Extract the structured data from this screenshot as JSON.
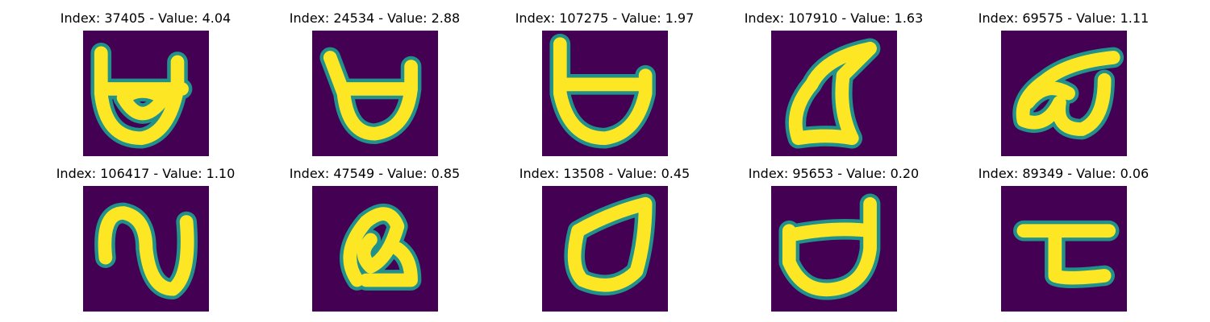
{
  "colors": {
    "background": "#440154",
    "stroke": "#fde725",
    "edge": "#21918c"
  },
  "chart_data": {
    "type": "image-grid",
    "panels": [
      {
        "title": "Index: 37405 - Value: 4.04",
        "index": 37405,
        "value": 4.04,
        "glyph": "open-bowl"
      },
      {
        "title": "Index: 24534 - Value: 2.88",
        "index": 24534,
        "value": 2.88,
        "glyph": "open-bowl"
      },
      {
        "title": "Index: 107275 - Value: 1.97",
        "index": 107275,
        "value": 1.97,
        "glyph": "open-bowl"
      },
      {
        "title": "Index: 107910 - Value: 1.63",
        "index": 107910,
        "value": 1.63,
        "glyph": "curl"
      },
      {
        "title": "Index: 69575 - Value: 1.11",
        "index": 69575,
        "value": 1.11,
        "glyph": "loop"
      },
      {
        "title": "Index: 106417 - Value: 1.10",
        "index": 106417,
        "value": 1.1,
        "glyph": "wave"
      },
      {
        "title": "Index: 47549 - Value: 0.85",
        "index": 47549,
        "value": 0.85,
        "glyph": "knot"
      },
      {
        "title": "Index: 13508 - Value: 0.45",
        "index": 13508,
        "value": 0.45,
        "glyph": "triangle-loop"
      },
      {
        "title": "Index: 95653 - Value: 0.20",
        "index": 95653,
        "value": 0.2,
        "glyph": "open-bowl"
      },
      {
        "title": "Index: 89349 - Value: 0.06",
        "index": 89349,
        "value": 0.06,
        "glyph": "bar"
      }
    ]
  }
}
